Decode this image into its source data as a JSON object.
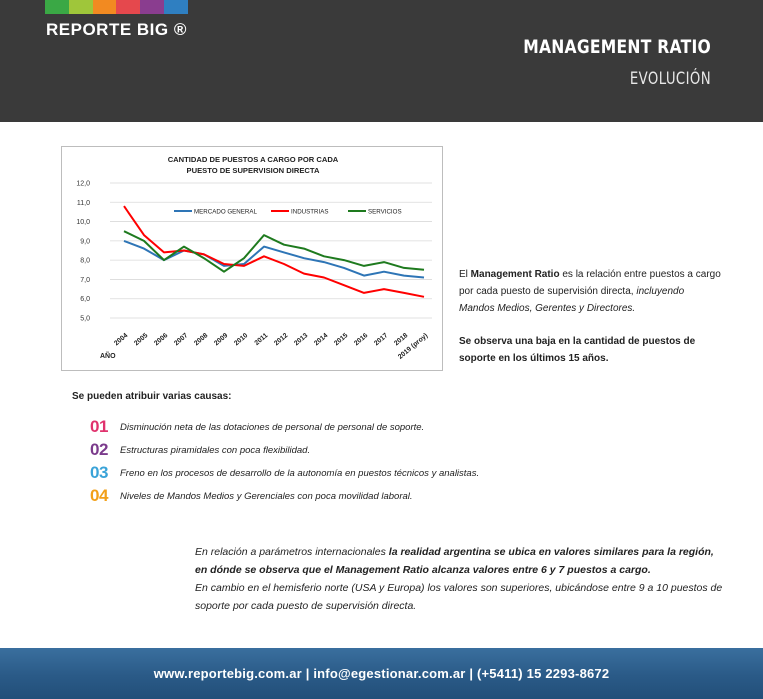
{
  "header": {
    "brand": "REPORTE BIG ®",
    "title": "MANAGEMENT RATIO",
    "subtitle": "EVOLUCIÓN",
    "strip_colors": [
      "#3aa845",
      "#9fc63a",
      "#f28a21",
      "#e5484d",
      "#8a3d8f",
      "#2f7fc1"
    ]
  },
  "chart_data": {
    "type": "line",
    "title_line1": "CANTIDAD DE PUESTOS A CARGO POR CADA",
    "title_line2": "PUESTO DE SUPERVISION DIRECTA",
    "xlabel": "AÑO",
    "ylabel": "",
    "categories": [
      "2004",
      "2005",
      "2006",
      "2007",
      "2008",
      "2009",
      "2010",
      "2011",
      "2012",
      "2013",
      "2014",
      "2015",
      "2016",
      "2017",
      "2018",
      "2019 (proy)"
    ],
    "y_ticks": [
      "12,0",
      "11,0",
      "10,0",
      "9,0",
      "8,0",
      "7,0",
      "6,0",
      "5,0"
    ],
    "ylim": [
      5,
      12
    ],
    "grid": true,
    "legend_position": "top",
    "series": [
      {
        "name": "MERCADO GENERAL",
        "color": "#2e75b6",
        "values": [
          9.0,
          8.6,
          8.0,
          8.5,
          8.3,
          7.7,
          7.8,
          8.7,
          8.4,
          8.1,
          7.9,
          7.6,
          7.2,
          7.4,
          7.2,
          7.1
        ]
      },
      {
        "name": "INDUSTRIAS",
        "color": "#ff0000",
        "values": [
          10.8,
          9.3,
          8.4,
          8.5,
          8.3,
          7.8,
          7.7,
          8.2,
          7.8,
          7.3,
          7.1,
          6.7,
          6.3,
          6.5,
          6.3,
          6.1
        ]
      },
      {
        "name": "SERVICIOS",
        "color": "#1e7a1e",
        "values": [
          9.5,
          9.0,
          8.0,
          8.7,
          8.1,
          7.4,
          8.1,
          9.3,
          8.8,
          8.6,
          8.2,
          8.0,
          7.7,
          7.9,
          7.6,
          7.5
        ]
      }
    ]
  },
  "description": {
    "p1_pre": "El ",
    "p1_bold": "Management Ratio",
    "p1_mid": " es la relación entre puestos a cargo por cada puesto de supervisión directa, ",
    "p1_italic": "incluyendo Mandos Medios, Gerentes y Directores.",
    "p2_bold": "Se observa una baja en la cantidad de puestos de soporte en los últimos 15 años."
  },
  "causes": {
    "heading": "Se pueden atribuir varias causas:",
    "items": [
      {
        "num": "01",
        "color": "#e0336e",
        "text": "Disminución neta de las dotaciones de personal de personal de soporte."
      },
      {
        "num": "02",
        "color": "#7b3b8c",
        "text": "Estructuras piramidales con poca flexibilidad."
      },
      {
        "num": "03",
        "color": "#3aa3d8",
        "text": "Freno en los procesos de desarrollo de la autonomía en puestos técnicos y analistas."
      },
      {
        "num": "04",
        "color": "#f2a019",
        "text": "Niveles de Mandos Medios y Gerenciales con poca movilidad laboral."
      }
    ]
  },
  "bottom": {
    "s1_plain": "En relación a parámetros internacionales ",
    "s1_bold": "la realidad argentina se ubica en valores similares para la región, en dónde se observa que el Management Ratio alcanza valores entre 6 y 7 puestos a cargo.",
    "s2": "En cambio en el hemisferio norte (USA y Europa) los valores son superiores, ubicándose entre 9 a 10 puestos de soporte por cada puesto de supervisión directa."
  },
  "footer": {
    "text": "www.reportebig.com.ar | info@egestionar.com.ar | (+5411) 15 2293-8672"
  }
}
